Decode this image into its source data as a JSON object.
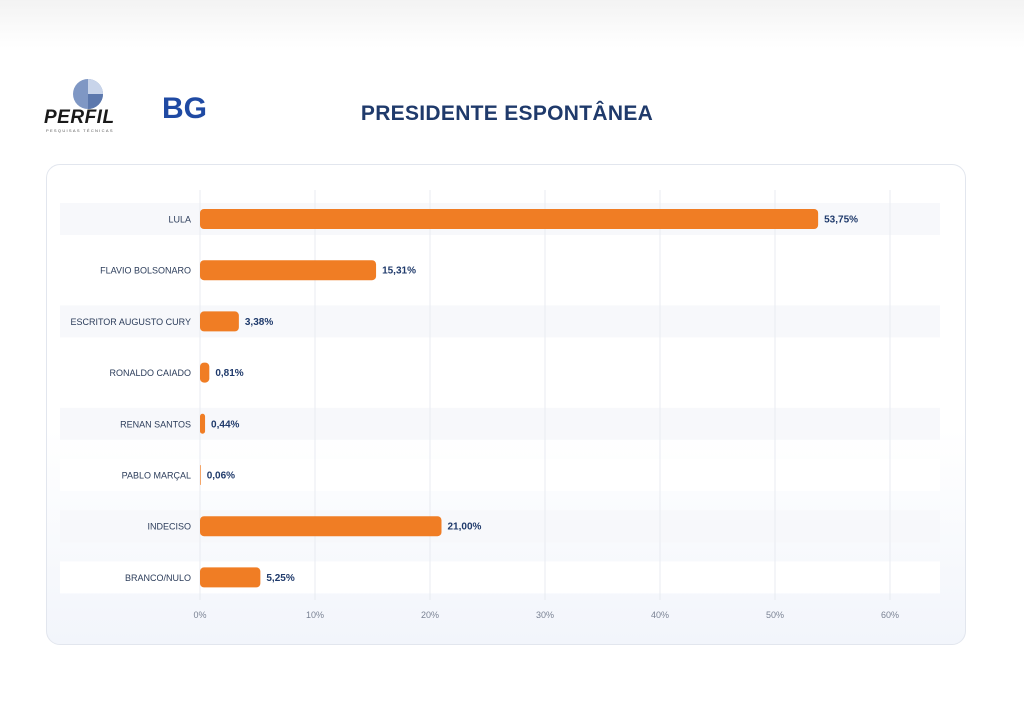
{
  "header": {
    "perfil_logo_text": "PERFIL",
    "perfil_logo_subtext": "PESQUISAS TÉCNICAS",
    "bg_logo_text": "BG",
    "title": "PRESIDENTE ESPONTÂNEA"
  },
  "colors": {
    "bar": "#f07d24",
    "label": "#2b3c5a",
    "value": "#1f3a6b",
    "grid": "#e8ebf1",
    "title": "#1f3a6b"
  },
  "chart_data": {
    "type": "bar",
    "orientation": "horizontal",
    "title": "PRESIDENTE ESPONTÂNEA",
    "categories": [
      "LULA",
      "FLAVIO BOLSONARO",
      "ESCRITOR AUGUSTO CURY",
      "RONALDO CAIADO",
      "RENAN SANTOS",
      "PABLO MARÇAL",
      "INDECISO",
      "BRANCO/NULO"
    ],
    "values": [
      53.75,
      15.31,
      3.38,
      0.81,
      0.44,
      0.06,
      21.0,
      5.25
    ],
    "value_labels": [
      "53,75%",
      "15,31%",
      "3,38%",
      "0,81%",
      "0,44%",
      "0,06%",
      "21,00%",
      "5,25%"
    ],
    "xlim": [
      0,
      60
    ],
    "x_ticks": [
      0,
      10,
      20,
      30,
      40,
      50,
      60
    ],
    "x_tick_labels": [
      "0%",
      "10%",
      "20%",
      "30%",
      "40%",
      "50%",
      "60%"
    ],
    "xlabel": "",
    "ylabel": "",
    "grid": true,
    "legend": "none"
  }
}
